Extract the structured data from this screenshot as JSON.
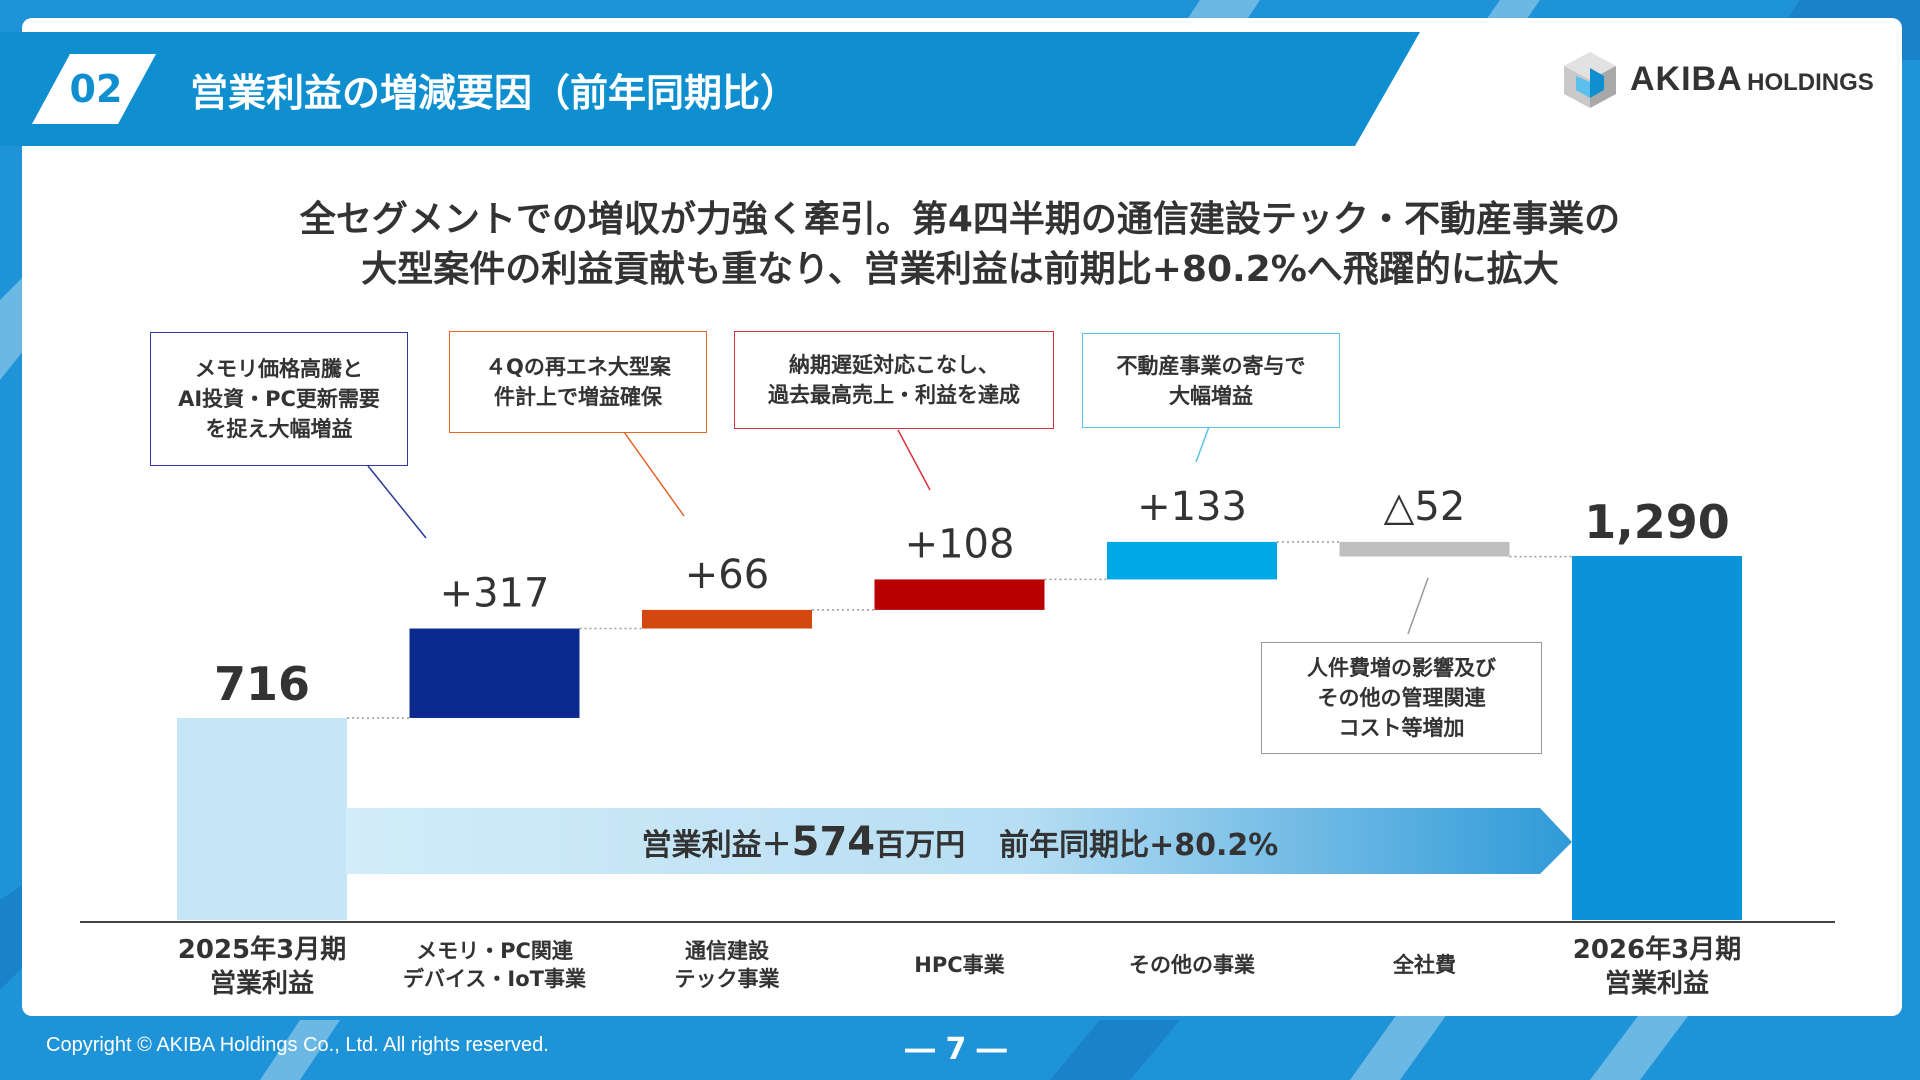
{
  "header": {
    "section_number": "02",
    "title": "営業利益の増減要因（前年同期比）"
  },
  "logo": {
    "name_main": "AKIBA",
    "name_sub": "HOLDINGS"
  },
  "headline": {
    "line1": "全セグメントでの増収が力強く牽引。第4四半期の通信建設テック・不動産事業の",
    "line2": "大型案件の利益貢献も重なり、営業利益は前期比+80.2%へ飛躍的に拡大"
  },
  "callouts": [
    {
      "text": "メモリ価格高騰と\nAI投資・PC更新需要\nを捉え大幅増益",
      "border_color": "#2b3a9b"
    },
    {
      "text": "４Qの再エネ大型案\n件計上で増益確保",
      "border_color": "#e8652a"
    },
    {
      "text": "納期遅延対応こなし、\n過去最高売上・利益を達成",
      "border_color": "#d8323a"
    },
    {
      "text": "不動産事業の寄与で\n大幅増益",
      "border_color": "#57c3e6"
    },
    {
      "text": "人件費増の影響及び\nその他の管理関連\nコスト等増加",
      "border_color": "#9a9a9a"
    }
  ],
  "chart_data": {
    "type": "bar",
    "subtype": "waterfall",
    "unit": "百万円",
    "categories": [
      "2025年3月期\n営業利益",
      "メモリ・PC関連\nデバイス・IoT事業",
      "通信建設\nテック事業",
      "HPC事業",
      "その他の事業",
      "全社費",
      "2026年3月期\n営業利益"
    ],
    "values": [
      716,
      317,
      66,
      108,
      133,
      -52,
      1290
    ],
    "kinds": [
      "total",
      "delta",
      "delta",
      "delta",
      "delta",
      "delta",
      "total"
    ],
    "value_labels": [
      "716",
      "+317",
      "+66",
      "+108",
      "+133",
      "△52",
      "1,290"
    ],
    "colors": [
      "#c5e6f6",
      "#0a2a8f",
      "#d4470e",
      "#b80000",
      "#00a8e8",
      "#bfbfbf",
      "#0a93d8"
    ],
    "ylim": [
      0,
      1290
    ],
    "grid": false,
    "arrow_label": {
      "prefix": "営業利益＋",
      "value": "574",
      "unit": "百万円",
      "ratio_text": "前年同期比+80.2%"
    }
  },
  "footer": {
    "copyright": "Copyright © AKIBA Holdings Co., Ltd. All rights reserved.",
    "page_number": "― 7 ―"
  }
}
